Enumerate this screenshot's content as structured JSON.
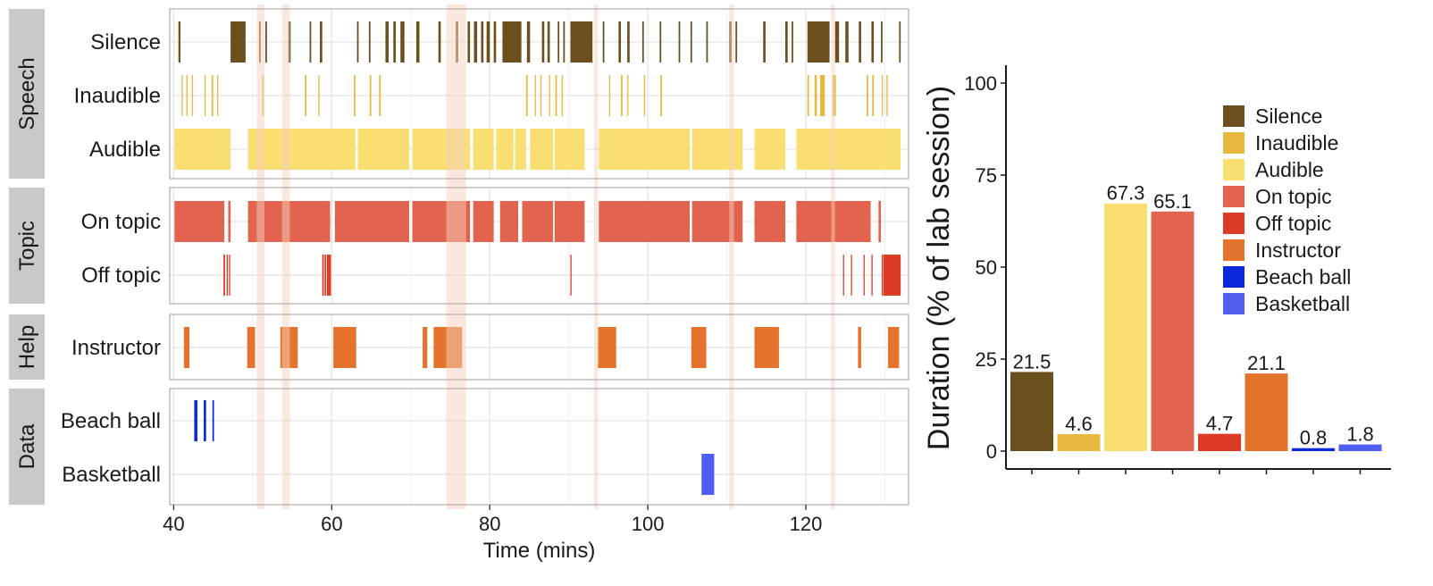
{
  "chart_data": [
    {
      "type": "timeline",
      "xlabel": "Time (mins)",
      "xlim": [
        39.5,
        133
      ],
      "xticks": [
        40,
        60,
        80,
        100,
        120
      ],
      "xtick_labels": [
        "40",
        "60",
        "80",
        "100",
        "120"
      ],
      "highlight_intervals": [
        [
          50.5,
          51.5
        ],
        [
          53.7,
          54.7
        ],
        [
          74.5,
          77
        ],
        [
          93.2,
          93.7
        ],
        [
          110.3,
          110.9
        ],
        [
          123.2,
          123.7
        ]
      ],
      "panels": [
        {
          "strip": "Speech",
          "rows": [
            {
              "label": "Silence",
              "color": "#6b4f1d",
              "intervals": [
                [
                  40.6,
                  40.85
                ],
                [
                  47.2,
                  49.1
                ],
                [
                  50.8,
                  51
                ],
                [
                  51.6,
                  51.8
                ],
                [
                  54.5,
                  54.8
                ],
                [
                  57.2,
                  57.4
                ],
                [
                  58.5,
                  58.8
                ],
                [
                  63.2,
                  63.4
                ],
                [
                  64.7,
                  64.9
                ],
                [
                  66.8,
                  67.2
                ],
                [
                  67.8,
                  68.1
                ],
                [
                  68.7,
                  69.2
                ],
                [
                  70.7,
                  71.1
                ],
                [
                  73.5,
                  73.8
                ],
                [
                  75.7,
                  76
                ],
                [
                  77.2,
                  77.5
                ],
                [
                  78,
                  78.4
                ],
                [
                  78.9,
                  79.2
                ],
                [
                  79.6,
                  80
                ],
                [
                  80.5,
                  80.8
                ],
                [
                  81.6,
                  84
                ],
                [
                  84.7,
                  85.1
                ],
                [
                  86.6,
                  86.9
                ],
                [
                  87.3,
                  87.6
                ],
                [
                  88.6,
                  88.8
                ],
                [
                  89.3,
                  89.5
                ],
                [
                  90.2,
                  93
                ],
                [
                  94.3,
                  94.5
                ],
                [
                  96.3,
                  96.6
                ],
                [
                  97.4,
                  97.7
                ],
                [
                  99.3,
                  99.5
                ],
                [
                  101.5,
                  101.7
                ],
                [
                  103.9,
                  104.1
                ],
                [
                  105.4,
                  105.6
                ],
                [
                  107.4,
                  107.6
                ],
                [
                  110.3,
                  110.6
                ],
                [
                  111.1,
                  111.3
                ],
                [
                  114.6,
                  114.9
                ],
                [
                  117.4,
                  117.7
                ],
                [
                  118.2,
                  118.4
                ],
                [
                  120.2,
                  123
                ],
                [
                  123.7,
                  124.2
                ],
                [
                  125,
                  125.4
                ],
                [
                  126.7,
                  127
                ],
                [
                  128.3,
                  128.6
                ],
                [
                  129.5,
                  129.7
                ],
                [
                  131.8,
                  132
                ]
              ]
            },
            {
              "label": "Inaudible",
              "color": "#e8b83f",
              "intervals": [
                [
                  41,
                  41.1
                ],
                [
                  41.6,
                  41.7
                ],
                [
                  42.3,
                  42.4
                ],
                [
                  43.9,
                  44
                ],
                [
                  44.8,
                  45
                ],
                [
                  45.5,
                  45.6
                ],
                [
                  51.2,
                  51.4
                ],
                [
                  56.6,
                  56.8
                ],
                [
                  58.3,
                  58.4
                ],
                [
                  62.8,
                  63
                ],
                [
                  64.8,
                  65
                ],
                [
                  66,
                  66.2
                ],
                [
                  84.6,
                  84.8
                ],
                [
                  85.7,
                  85.8
                ],
                [
                  86.4,
                  86.5
                ],
                [
                  87.5,
                  87.6
                ],
                [
                  88.3,
                  88.5
                ],
                [
                  89.1,
                  89.2
                ],
                [
                  95.1,
                  95.2
                ],
                [
                  96.6,
                  96.8
                ],
                [
                  97.4,
                  97.5
                ],
                [
                  99.5,
                  99.6
                ],
                [
                  101.6,
                  101.8
                ],
                [
                  120.2,
                  120.4
                ],
                [
                  121.1,
                  121.4
                ],
                [
                  121.8,
                  122.4
                ],
                [
                  123.4,
                  123.8
                ],
                [
                  127.7,
                  127.9
                ],
                [
                  128.4,
                  128.6
                ],
                [
                  129.6,
                  129.7
                ],
                [
                  130.2,
                  130.3
                ]
              ]
            },
            {
              "label": "Audible",
              "color": "#f9df72",
              "intervals": [
                [
                  40.1,
                  47.2
                ],
                [
                  49.4,
                  63
                ],
                [
                  63.3,
                  69.8
                ],
                [
                  70.2,
                  77.5
                ],
                [
                  77.9,
                  80.5
                ],
                [
                  80.8,
                  83
                ],
                [
                  83.2,
                  84.6
                ],
                [
                  85.1,
                  88
                ],
                [
                  88.2,
                  92
                ],
                [
                  93.8,
                  105.3
                ],
                [
                  105.6,
                  112
                ],
                [
                  113.5,
                  117.4
                ],
                [
                  118.8,
                  132
                ]
              ]
            }
          ]
        },
        {
          "strip": "Topic",
          "rows": [
            {
              "label": "On topic",
              "color": "#e2634e",
              "intervals": [
                [
                  40.1,
                  46.4
                ],
                [
                  46.9,
                  47.2
                ],
                [
                  49.4,
                  59.8
                ],
                [
                  60.4,
                  69.8
                ],
                [
                  70.2,
                  77.5
                ],
                [
                  77.9,
                  80.5
                ],
                [
                  81.3,
                  83.6
                ],
                [
                  84.1,
                  88
                ],
                [
                  88.2,
                  92
                ],
                [
                  93.8,
                  105.3
                ],
                [
                  105.6,
                  112
                ],
                [
                  113.5,
                  117.4
                ],
                [
                  118.8,
                  128.2
                ],
                [
                  129.2,
                  129.5
                ]
              ]
            },
            {
              "label": "Off topic",
              "color": "#dd3c24",
              "intervals": [
                [
                  46.3,
                  46.5
                ],
                [
                  46.7,
                  46.8
                ],
                [
                  47,
                  47.1
                ],
                [
                  58.8,
                  59
                ],
                [
                  59.1,
                  59.3
                ],
                [
                  59.4,
                  59.9
                ],
                [
                  90.2,
                  90.3
                ],
                [
                  124.7,
                  124.8
                ],
                [
                  125.7,
                  125.8
                ],
                [
                  127.3,
                  127.4
                ],
                [
                  128.3,
                  128.4
                ],
                [
                  129.6,
                  129.7
                ],
                [
                  129.8,
                  132
                ]
              ]
            }
          ]
        },
        {
          "strip": "Help",
          "rows": [
            {
              "label": "Instructor",
              "color": "#e4742d",
              "intervals": [
                [
                  41.3,
                  42
                ],
                [
                  49.3,
                  50.3
                ],
                [
                  53.5,
                  55.7
                ],
                [
                  60.2,
                  63.1
                ],
                [
                  71.5,
                  72.1
                ],
                [
                  72.9,
                  76.5
                ],
                [
                  93.7,
                  96
                ],
                [
                  105.5,
                  107.4
                ],
                [
                  113.5,
                  116.6
                ],
                [
                  126.6,
                  127
                ],
                [
                  130.4,
                  131.8
                ]
              ]
            }
          ]
        },
        {
          "strip": "Data",
          "rows": [
            {
              "label": "Beach ball",
              "color": "#0a28dd",
              "intervals": [
                [
                  42.6,
                  43
                ],
                [
                  43.8,
                  44.1
                ],
                [
                  44.9,
                  45.1
                ]
              ]
            },
            {
              "label": "Basketball",
              "color": "#4f5ef0",
              "intervals": [
                [
                  106.8,
                  108.4
                ]
              ]
            }
          ]
        }
      ]
    },
    {
      "type": "bar",
      "ylabel": "Duration (% of lab session)",
      "ylim": [
        0,
        100
      ],
      "yticks": [
        0,
        25,
        50,
        75,
        100
      ],
      "ytick_labels": [
        "0",
        "25",
        "50",
        "75",
        "100"
      ],
      "categories": [
        "Silence",
        "Inaudible",
        "Audible",
        "On topic",
        "Off topic",
        "Instructor",
        "Beach ball",
        "Basketball"
      ],
      "values": [
        21.5,
        4.6,
        67.3,
        65.1,
        4.7,
        21.1,
        0.8,
        1.8
      ],
      "value_labels": [
        "21.5",
        "4.6",
        "67.3",
        "65.1",
        "4.7",
        "21.1",
        "0.8",
        "1.8"
      ],
      "colors": [
        "#6b4f1d",
        "#e8b83f",
        "#f9df72",
        "#e2634e",
        "#dd3c24",
        "#e4742d",
        "#0a28dd",
        "#4f5ef0"
      ],
      "legend_title": "",
      "legend_position": "top-right"
    }
  ]
}
